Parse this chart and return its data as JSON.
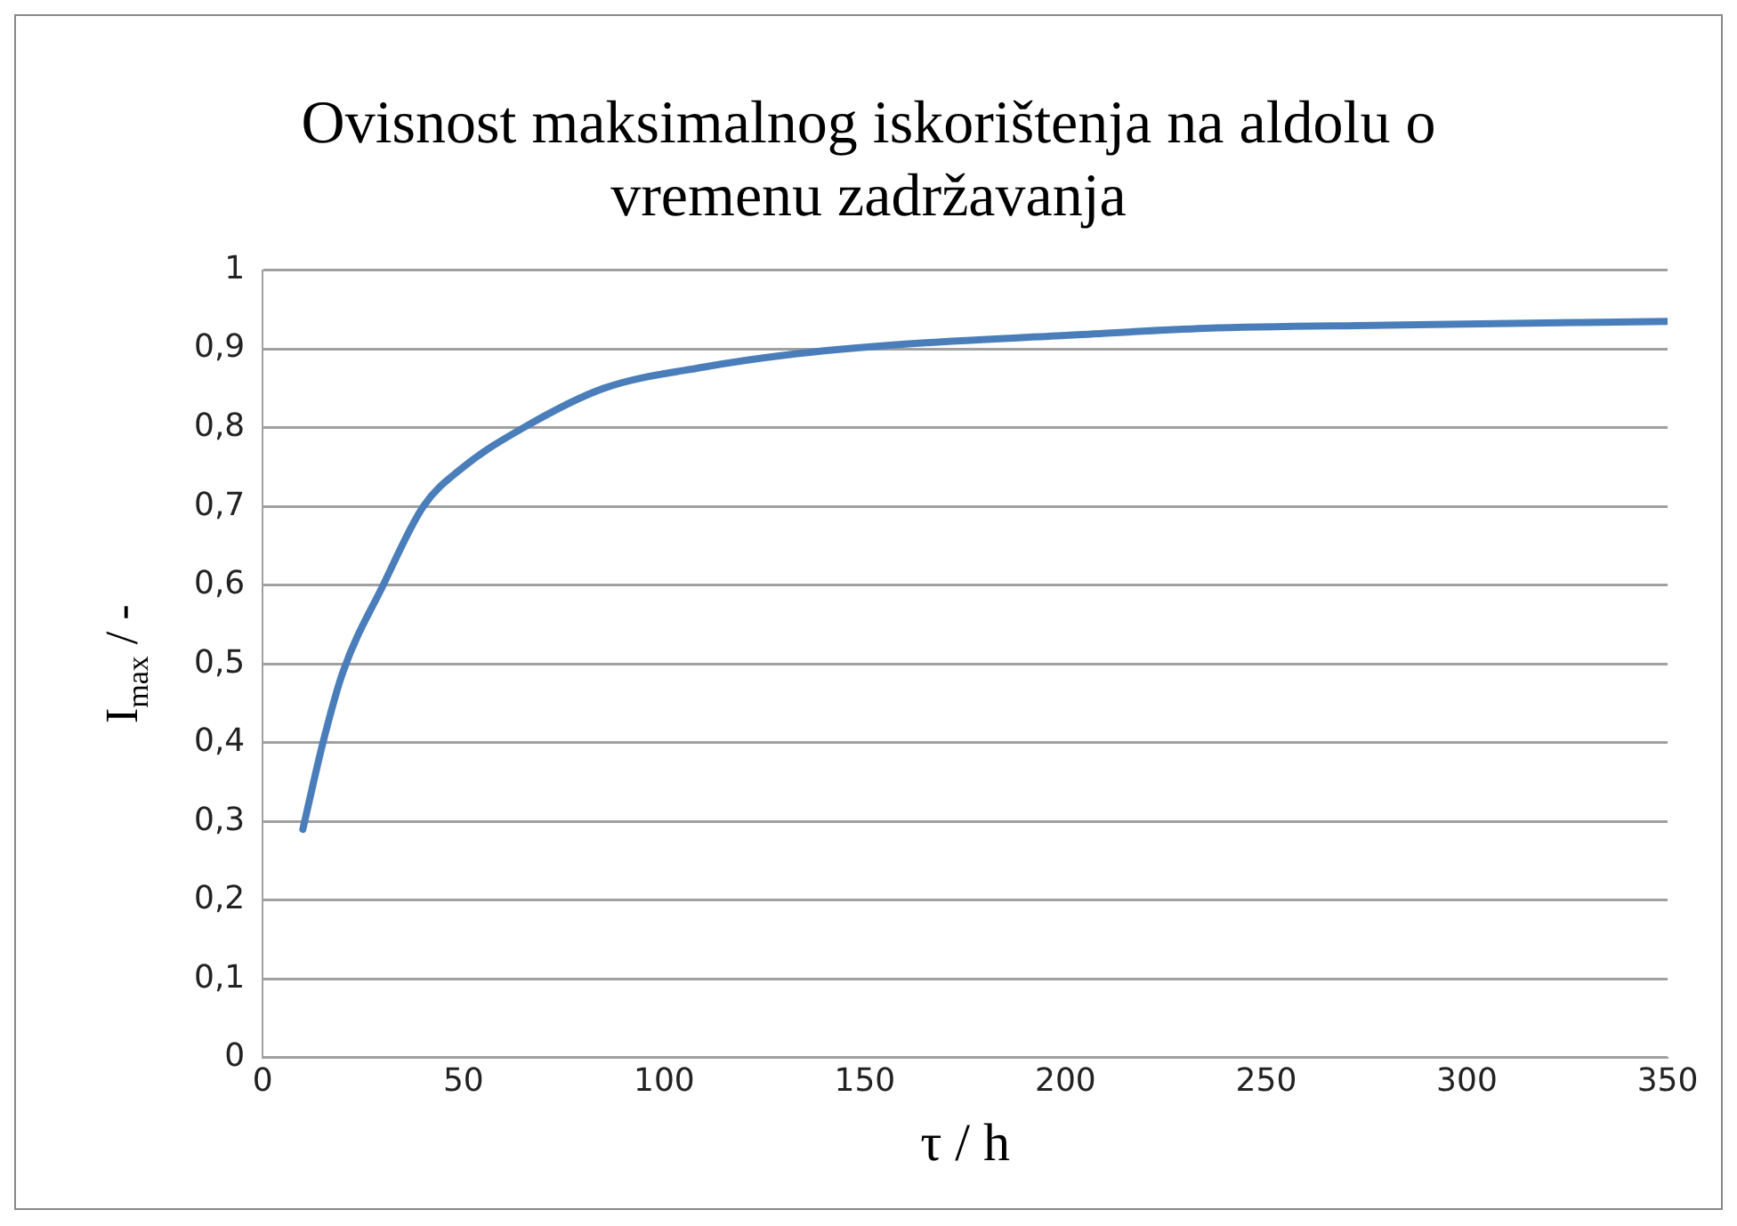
{
  "chart_data": {
    "type": "line",
    "title": "Ovisnost maksimalnog iskorištenja na aldolu o vremenu zadržavanja",
    "xlabel": "τ / h",
    "ylabel": "I$_{max}$ / -",
    "x": [
      10,
      15,
      20,
      30,
      40,
      50,
      65,
      85,
      110,
      130,
      160,
      200,
      235,
      280,
      350
    ],
    "series": [
      {
        "color": "#4a7ebb",
        "values": [
          0.29,
          0.4,
          0.49,
          0.6,
          0.7,
          0.75,
          0.8,
          0.85,
          0.877,
          0.892,
          0.906,
          0.917,
          0.926,
          0.93,
          0.935
        ]
      }
    ],
    "xlim": [
      0,
      350
    ],
    "xticks": [
      0,
      50,
      100,
      150,
      200,
      250,
      300,
      350
    ],
    "ylim": [
      0,
      1
    ],
    "yticks": [
      {
        "value": 0,
        "label": "0"
      },
      {
        "value": 0.1,
        "label": "0,1"
      },
      {
        "value": 0.2,
        "label": "0,2"
      },
      {
        "value": 0.3,
        "label": "0,3"
      },
      {
        "value": 0.4,
        "label": "0,4"
      },
      {
        "value": 0.5,
        "label": "0,5"
      },
      {
        "value": 0.6,
        "label": "0,6"
      },
      {
        "value": 0.7,
        "label": "0,7"
      },
      {
        "value": 0.8,
        "label": "0,8"
      },
      {
        "value": 0.9,
        "label": "0,9"
      },
      {
        "value": 1,
        "label": "1"
      }
    ],
    "grid": "y",
    "legend": false,
    "marker": "none",
    "line_style": "solid"
  }
}
